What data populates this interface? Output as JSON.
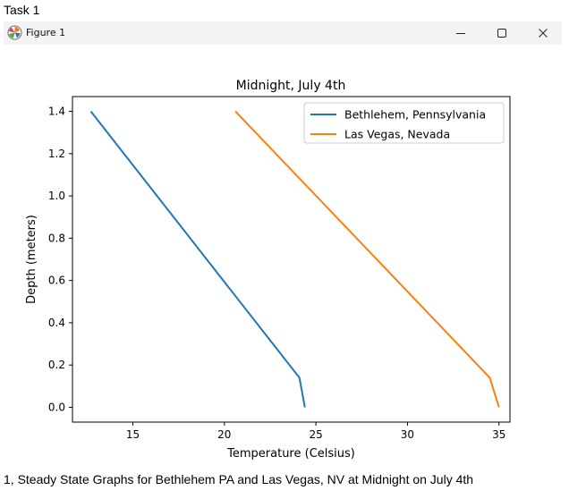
{
  "document": {
    "heading": "Task 1",
    "caption": "1, Steady State Graphs for Bethlehem PA and Las Vegas, NV at Midnight on July 4th"
  },
  "window": {
    "title": "Figure 1",
    "app_icon": "matplotlib-icon",
    "controls": {
      "minimize_icon": "minimize-icon",
      "maximize_icon": "maximize-icon",
      "close_icon": "close-icon"
    }
  },
  "chart_data": {
    "type": "line",
    "title": "Midnight, July 4th",
    "xlabel": "Temperature (Celsius)",
    "ylabel": "Depth (meters)",
    "xlim": [
      11.7,
      35.6
    ],
    "ylim": [
      -0.07,
      1.47
    ],
    "xticks": [
      15,
      20,
      25,
      30,
      35
    ],
    "xtick_labels": [
      "15",
      "20",
      "25",
      "30",
      "35"
    ],
    "yticks": [
      0.0,
      0.2,
      0.4,
      0.6,
      0.8,
      1.0,
      1.2,
      1.4
    ],
    "ytick_labels": [
      "0.0",
      "0.2",
      "0.4",
      "0.6",
      "0.8",
      "1.0",
      "1.2",
      "1.4"
    ],
    "grid": false,
    "legend_position": "top-right",
    "series": [
      {
        "name": "Bethlehem, Pennsylvania",
        "color": "#1f77b4",
        "x": [
          24.4,
          24.1,
          12.7
        ],
        "y": [
          0.0,
          0.14,
          1.4
        ]
      },
      {
        "name": "Las Vegas, Nevada",
        "color": "#ff7f0e",
        "x": [
          35.0,
          34.5,
          20.6
        ],
        "y": [
          0.0,
          0.14,
          1.4
        ]
      }
    ]
  }
}
